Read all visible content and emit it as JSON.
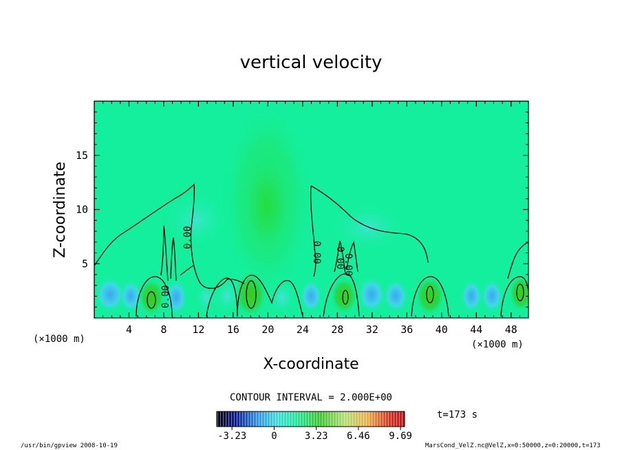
{
  "chart_data": {
    "type": "heatmap",
    "title": "vertical velocity",
    "xlabel": "X-coordinate",
    "ylabel": "Z-coordinate",
    "x_unit": "(×1000 m)",
    "y_unit": "(×1000 m)",
    "xlim": [
      0,
      50
    ],
    "ylim": [
      0,
      20
    ],
    "x_ticks": [
      4,
      8,
      12,
      16,
      20,
      24,
      28,
      32,
      36,
      40,
      44,
      48
    ],
    "y_ticks": [
      5,
      10,
      15
    ],
    "contour_interval_label": "CONTOUR INTERVAL = 2.000E+00",
    "contour_labels": [
      "0.00",
      "0.00",
      "0.00",
      "0.00",
      "0.00"
    ],
    "colorbar": {
      "ticks": [
        "-3.23",
        "0",
        "3.23",
        "6.46",
        "9.69"
      ],
      "range": [
        -4.4,
        10.0
      ]
    },
    "time_label": "t=173  s",
    "grid": false
  },
  "footer": {
    "left": "/usr/bin/gpview  2008-10-19",
    "right": "MarsCond_VelZ.nc@VelZ,x=0:50000,z=0:20000,t=173"
  },
  "colors": {
    "background_field": "#14ef9e",
    "contour": "#000000"
  }
}
